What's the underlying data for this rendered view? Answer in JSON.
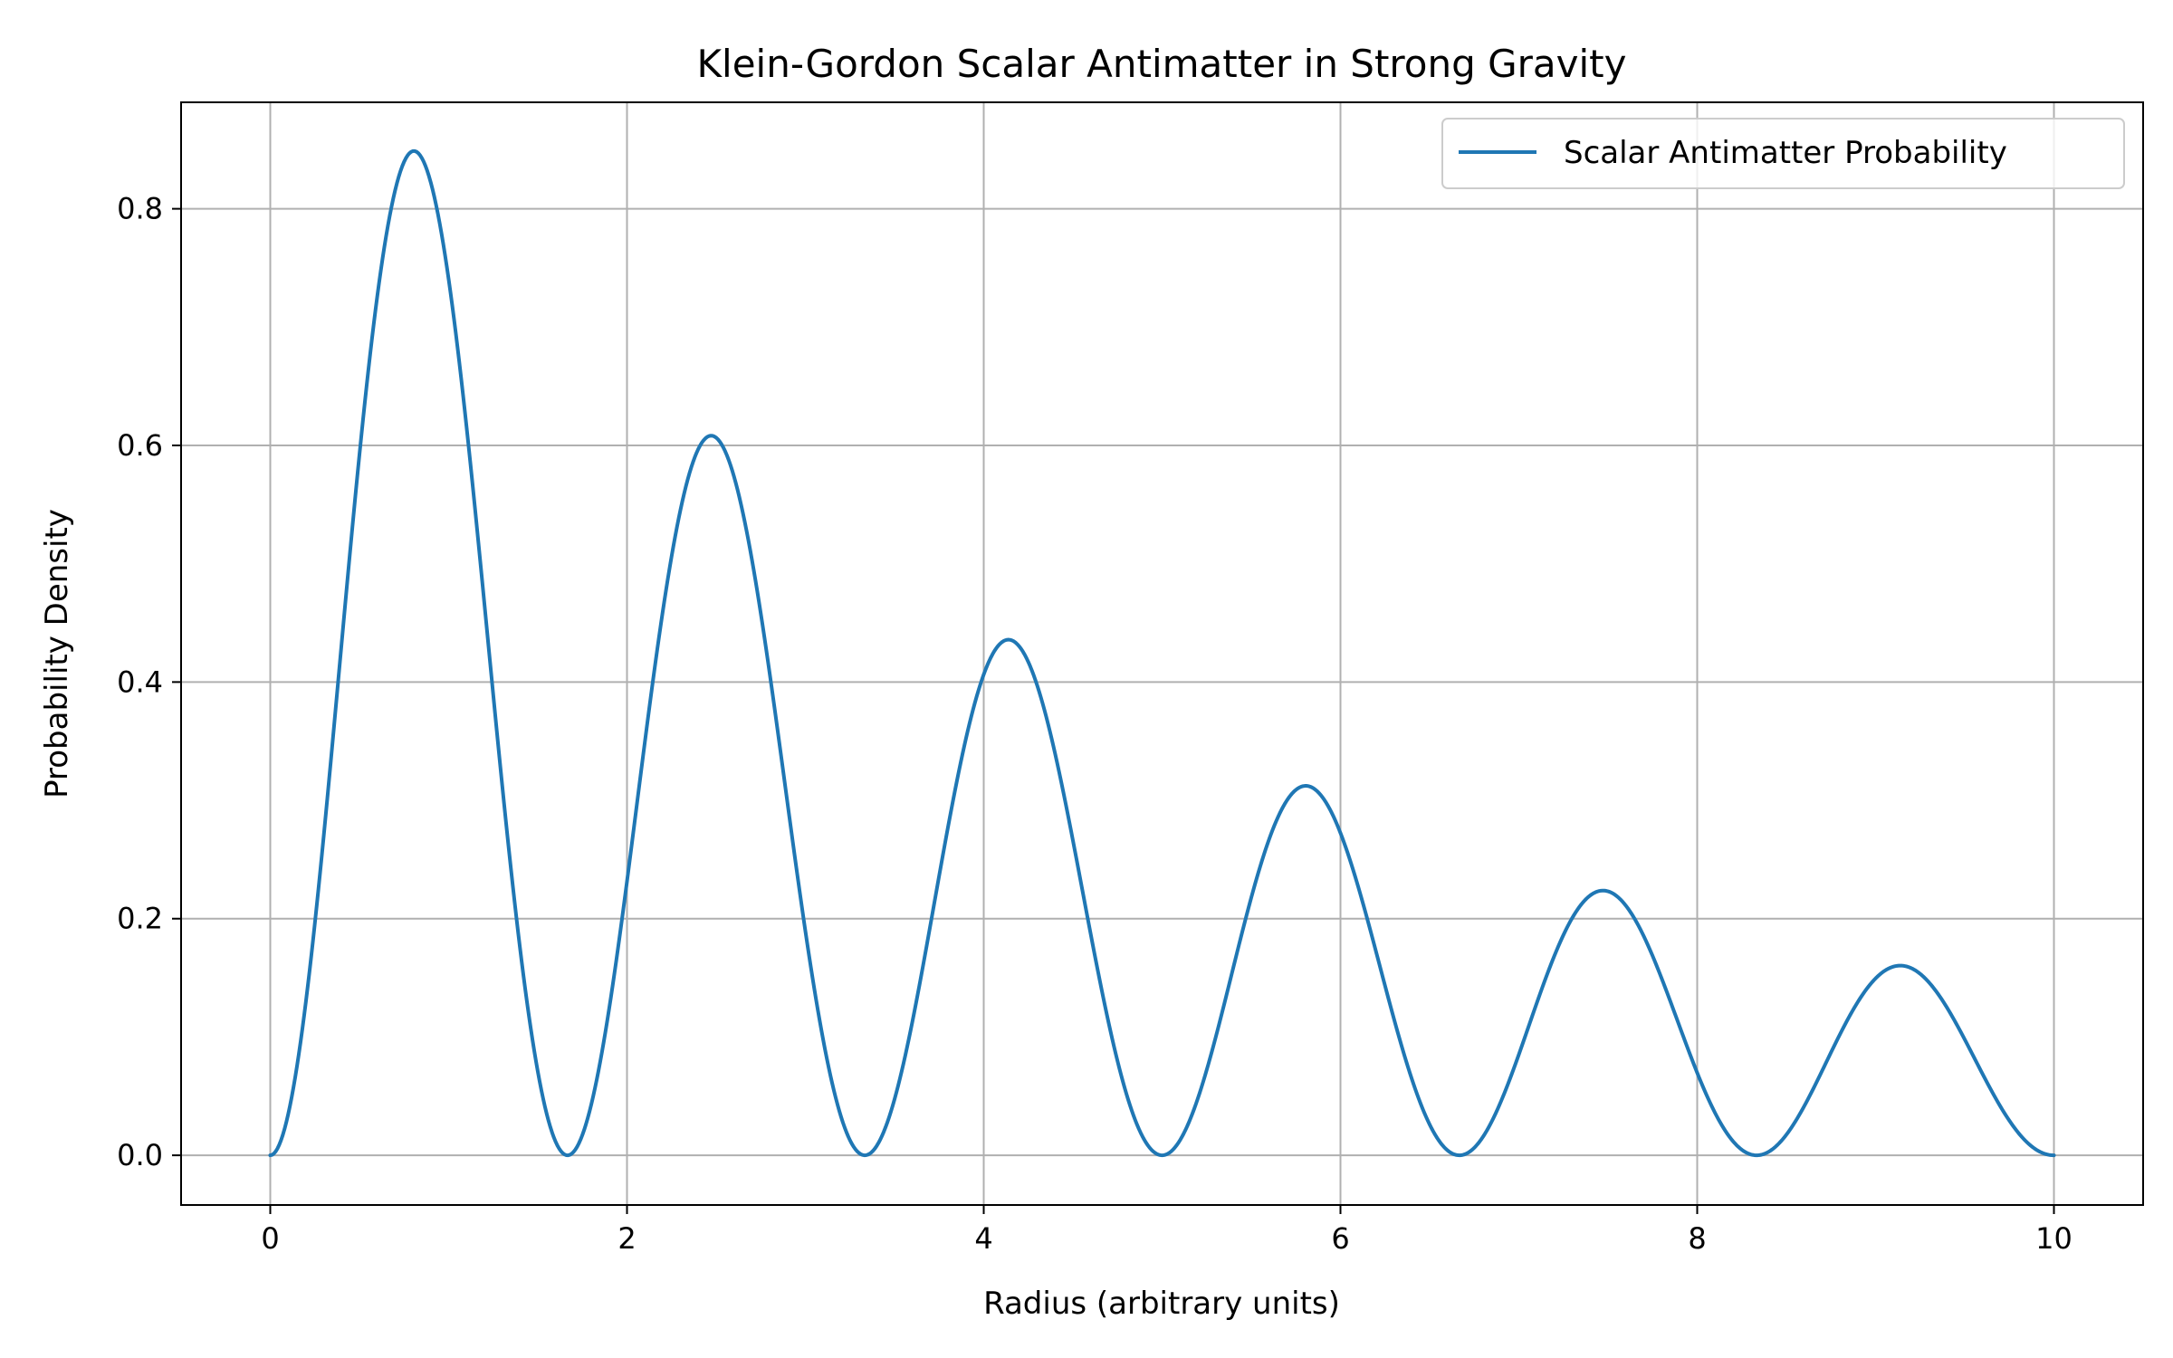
{
  "chart_data": {
    "type": "line",
    "title": "Klein-Gordon Scalar Antimatter in Strong Gravity",
    "xlabel": "Radius (arbitrary units)",
    "ylabel": "Probability Density",
    "xlim": [
      -0.5,
      10.5
    ],
    "ylim": [
      -0.042,
      0.89
    ],
    "x_ticks": [
      0,
      2,
      4,
      6,
      8,
      10
    ],
    "x_tick_labels": [
      "0",
      "2",
      "4",
      "6",
      "8",
      "10"
    ],
    "y_ticks": [
      0.0,
      0.2,
      0.4,
      0.6,
      0.8
    ],
    "y_tick_labels": [
      "0.0",
      "0.2",
      "0.4",
      "0.6",
      "0.8"
    ],
    "grid": true,
    "legend_position": "top-right",
    "series": [
      {
        "name": "Scalar Antimatter Probability",
        "color": "#1f77b4",
        "function": "sin^2(0.6*pi*r) * exp(-0.2*r)",
        "x_range": [
          0,
          10
        ],
        "peaks": [
          {
            "x": 0.81,
            "y": 0.85
          },
          {
            "x": 2.47,
            "y": 0.61
          },
          {
            "x": 4.14,
            "y": 0.435
          },
          {
            "x": 5.8,
            "y": 0.312
          },
          {
            "x": 7.47,
            "y": 0.224
          },
          {
            "x": 9.14,
            "y": 0.16
          }
        ],
        "zeros": [
          0,
          1.667,
          3.333,
          5.0,
          6.667,
          8.333,
          10.0
        ]
      }
    ]
  },
  "colors": {
    "line": "#1f77b4",
    "grid": "#b0b0b0",
    "axes": "#000000",
    "legend_border": "#cccccc"
  }
}
